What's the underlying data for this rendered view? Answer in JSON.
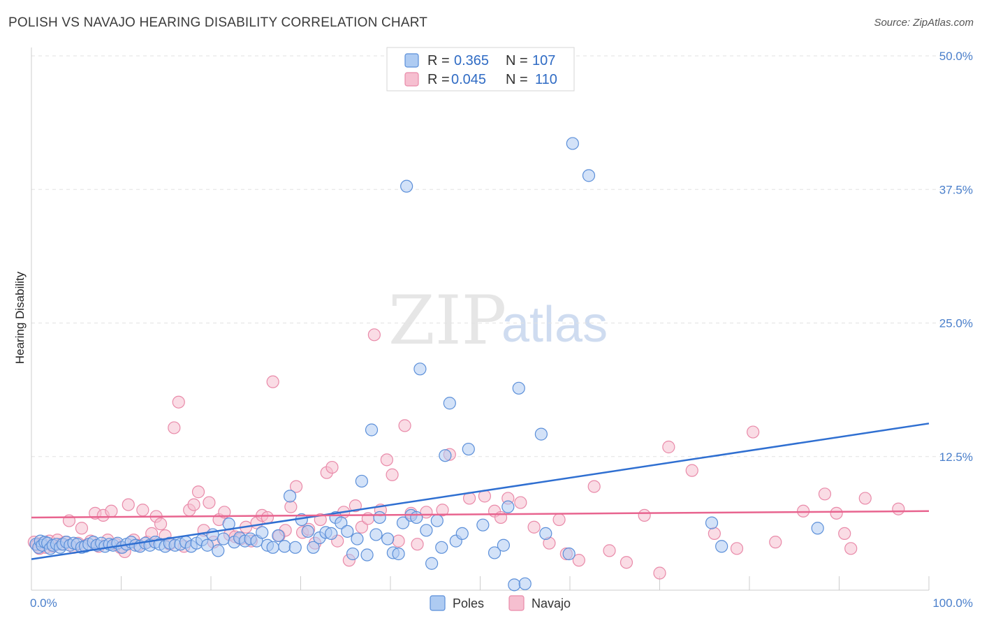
{
  "title": "POLISH VS NAVAJO HEARING DISABILITY CORRELATION CHART",
  "source": "Source: ZipAtlas.com",
  "watermark": {
    "zip": "ZIP",
    "atlas": "atlas"
  },
  "legend": {
    "rows": [
      {
        "r_label": "R = ",
        "r_value": "0.365",
        "n_label": "N = ",
        "n_value": "107"
      },
      {
        "r_label": "R = ",
        "r_value": "0.045",
        "n_label": "N = ",
        "n_value": "110"
      }
    ]
  },
  "colors": {
    "poles_fill": "#aecbf2",
    "poles_stroke": "#5b8fd9",
    "poles_line": "#2f6fd1",
    "navajo_fill": "#f6bfd0",
    "navajo_stroke": "#e98aa9",
    "navajo_line": "#e8648f",
    "grid": "#e2e2e2",
    "axis": "#cccccc"
  },
  "chart_data": {
    "type": "scatter",
    "ylabel": "Hearing Disability",
    "xlim": [
      0,
      100
    ],
    "ylim": [
      0,
      50
    ],
    "y_ticks": [
      {
        "value": 12.5,
        "label": "12.5%"
      },
      {
        "value": 25.0,
        "label": "25.0%"
      },
      {
        "value": 37.5,
        "label": "37.5%"
      },
      {
        "value": 50.0,
        "label": "50.0%"
      }
    ],
    "x_tick_labels": [
      {
        "value": 0,
        "label": "0.0%"
      },
      {
        "value": 100,
        "label": "100.0%"
      }
    ],
    "x_minor_ticks": [
      10,
      20,
      30,
      40,
      50,
      60,
      70,
      80,
      90,
      100
    ],
    "legend_position": "top-center",
    "series": [
      {
        "name": "Poles",
        "trend": {
          "x": [
            0,
            100
          ],
          "y": [
            2.9,
            15.6
          ]
        },
        "points": [
          [
            0.5,
            4.3
          ],
          [
            0.8,
            4.0
          ],
          [
            1.0,
            4.6
          ],
          [
            1.2,
            4.2
          ],
          [
            1.5,
            4.5
          ],
          [
            1.8,
            4.4
          ],
          [
            2.1,
            3.9
          ],
          [
            2.4,
            4.2
          ],
          [
            2.8,
            4.3
          ],
          [
            3.2,
            4.0
          ],
          [
            3.5,
            4.3
          ],
          [
            3.9,
            4.5
          ],
          [
            4.3,
            4.2
          ],
          [
            4.7,
            4.4
          ],
          [
            5.1,
            4.3
          ],
          [
            5.6,
            4.0
          ],
          [
            6.0,
            4.1
          ],
          [
            6.4,
            4.3
          ],
          [
            6.9,
            4.5
          ],
          [
            7.3,
            4.2
          ],
          [
            7.8,
            4.4
          ],
          [
            8.2,
            4.1
          ],
          [
            8.7,
            4.3
          ],
          [
            9.1,
            4.2
          ],
          [
            9.6,
            4.4
          ],
          [
            10.1,
            4.0
          ],
          [
            10.6,
            4.3
          ],
          [
            11.1,
            4.5
          ],
          [
            11.6,
            4.2
          ],
          [
            12.1,
            4.1
          ],
          [
            12.7,
            4.4
          ],
          [
            13.2,
            4.2
          ],
          [
            13.8,
            4.5
          ],
          [
            14.3,
            4.3
          ],
          [
            14.9,
            4.1
          ],
          [
            15.4,
            4.4
          ],
          [
            16.0,
            4.2
          ],
          [
            16.6,
            4.3
          ],
          [
            17.2,
            4.5
          ],
          [
            17.8,
            4.1
          ],
          [
            18.4,
            4.4
          ],
          [
            19.0,
            4.7
          ],
          [
            19.6,
            4.2
          ],
          [
            20.2,
            5.2
          ],
          [
            20.8,
            3.7
          ],
          [
            21.4,
            4.8
          ],
          [
            22.0,
            6.2
          ],
          [
            22.6,
            4.5
          ],
          [
            23.2,
            4.9
          ],
          [
            23.8,
            4.6
          ],
          [
            24.4,
            4.8
          ],
          [
            25.1,
            4.6
          ],
          [
            25.7,
            5.4
          ],
          [
            26.3,
            4.2
          ],
          [
            26.9,
            4.0
          ],
          [
            27.5,
            5.1
          ],
          [
            28.2,
            4.1
          ],
          [
            28.8,
            8.8
          ],
          [
            29.4,
            4.0
          ],
          [
            30.1,
            6.6
          ],
          [
            30.8,
            5.5
          ],
          [
            31.4,
            4.0
          ],
          [
            32.1,
            4.9
          ],
          [
            32.8,
            5.4
          ],
          [
            33.4,
            5.3
          ],
          [
            33.9,
            6.8
          ],
          [
            34.5,
            6.3
          ],
          [
            35.2,
            5.5
          ],
          [
            35.8,
            3.4
          ],
          [
            36.3,
            4.8
          ],
          [
            36.8,
            10.2
          ],
          [
            37.4,
            3.3
          ],
          [
            37.9,
            15.0
          ],
          [
            38.4,
            5.2
          ],
          [
            38.8,
            6.8
          ],
          [
            39.7,
            4.8
          ],
          [
            40.3,
            3.5
          ],
          [
            40.9,
            3.4
          ],
          [
            41.4,
            6.3
          ],
          [
            41.8,
            37.8
          ],
          [
            42.3,
            7.0
          ],
          [
            42.9,
            6.8
          ],
          [
            43.3,
            20.7
          ],
          [
            44.0,
            5.6
          ],
          [
            44.6,
            2.5
          ],
          [
            45.2,
            6.5
          ],
          [
            45.7,
            4.0
          ],
          [
            46.1,
            12.6
          ],
          [
            46.6,
            17.5
          ],
          [
            47.3,
            4.6
          ],
          [
            48.0,
            5.3
          ],
          [
            48.7,
            13.2
          ],
          [
            50.3,
            6.1
          ],
          [
            51.6,
            3.5
          ],
          [
            52.6,
            4.2
          ],
          [
            53.1,
            7.8
          ],
          [
            53.8,
            0.5
          ],
          [
            54.3,
            18.9
          ],
          [
            55.0,
            0.6
          ],
          [
            56.8,
            14.6
          ],
          [
            57.3,
            5.3
          ],
          [
            59.9,
            3.4
          ],
          [
            60.3,
            41.8
          ],
          [
            62.1,
            38.8
          ],
          [
            75.8,
            6.3
          ],
          [
            76.9,
            4.1
          ],
          [
            87.6,
            5.8
          ]
        ]
      },
      {
        "name": "Navajo",
        "trend": {
          "x": [
            0,
            100
          ],
          "y": [
            6.8,
            7.4
          ]
        },
        "points": [
          [
            0.3,
            4.5
          ],
          [
            0.6,
            4.2
          ],
          [
            0.9,
            3.9
          ],
          [
            1.2,
            4.4
          ],
          [
            1.6,
            4.0
          ],
          [
            2.0,
            4.6
          ],
          [
            2.4,
            4.1
          ],
          [
            2.9,
            4.7
          ],
          [
            3.3,
            4.3
          ],
          [
            3.8,
            4.5
          ],
          [
            4.2,
            6.5
          ],
          [
            4.7,
            4.0
          ],
          [
            5.2,
            4.4
          ],
          [
            5.6,
            5.8
          ],
          [
            6.1,
            4.2
          ],
          [
            6.6,
            4.6
          ],
          [
            7.1,
            7.2
          ],
          [
            7.5,
            4.1
          ],
          [
            8.0,
            7.0
          ],
          [
            8.5,
            4.7
          ],
          [
            8.9,
            7.4
          ],
          [
            9.4,
            4.3
          ],
          [
            9.9,
            4.0
          ],
          [
            10.4,
            3.6
          ],
          [
            10.8,
            8.0
          ],
          [
            11.4,
            4.7
          ],
          [
            11.9,
            4.2
          ],
          [
            12.4,
            7.5
          ],
          [
            12.9,
            4.5
          ],
          [
            13.4,
            5.3
          ],
          [
            13.9,
            6.9
          ],
          [
            14.4,
            6.2
          ],
          [
            14.9,
            5.1
          ],
          [
            15.4,
            4.3
          ],
          [
            15.9,
            15.2
          ],
          [
            16.4,
            17.6
          ],
          [
            17.0,
            4.1
          ],
          [
            17.6,
            7.5
          ],
          [
            18.1,
            8.0
          ],
          [
            18.6,
            9.2
          ],
          [
            19.2,
            5.6
          ],
          [
            19.8,
            8.2
          ],
          [
            20.3,
            4.5
          ],
          [
            20.9,
            6.6
          ],
          [
            21.5,
            7.3
          ],
          [
            22.1,
            5.2
          ],
          [
            22.7,
            5.0
          ],
          [
            23.3,
            4.8
          ],
          [
            23.9,
            5.9
          ],
          [
            24.5,
            4.6
          ],
          [
            25.1,
            6.3
          ],
          [
            25.7,
            7.0
          ],
          [
            26.3,
            6.8
          ],
          [
            26.9,
            19.5
          ],
          [
            27.6,
            5.1
          ],
          [
            28.3,
            5.6
          ],
          [
            28.9,
            7.8
          ],
          [
            29.5,
            9.7
          ],
          [
            30.2,
            5.4
          ],
          [
            30.9,
            5.7
          ],
          [
            31.6,
            4.4
          ],
          [
            32.2,
            6.6
          ],
          [
            32.9,
            11.0
          ],
          [
            33.5,
            11.5
          ],
          [
            34.1,
            4.6
          ],
          [
            34.8,
            7.3
          ],
          [
            35.4,
            2.8
          ],
          [
            36.1,
            7.9
          ],
          [
            36.8,
            5.9
          ],
          [
            37.5,
            6.7
          ],
          [
            38.2,
            23.9
          ],
          [
            38.9,
            7.5
          ],
          [
            39.6,
            12.2
          ],
          [
            40.2,
            10.8
          ],
          [
            40.9,
            4.6
          ],
          [
            41.6,
            15.4
          ],
          [
            42.3,
            7.2
          ],
          [
            43.0,
            4.3
          ],
          [
            44.0,
            7.3
          ],
          [
            45.8,
            7.5
          ],
          [
            46.6,
            12.7
          ],
          [
            48.8,
            8.6
          ],
          [
            50.5,
            8.8
          ],
          [
            51.6,
            7.4
          ],
          [
            52.3,
            6.8
          ],
          [
            53.1,
            8.6
          ],
          [
            54.5,
            8.2
          ],
          [
            56.0,
            5.9
          ],
          [
            57.7,
            4.4
          ],
          [
            58.8,
            6.6
          ],
          [
            59.6,
            3.4
          ],
          [
            61.0,
            2.8
          ],
          [
            62.7,
            9.7
          ],
          [
            64.4,
            3.7
          ],
          [
            66.3,
            2.6
          ],
          [
            68.3,
            7.0
          ],
          [
            70.0,
            1.6
          ],
          [
            71.0,
            13.4
          ],
          [
            73.6,
            11.2
          ],
          [
            76.1,
            5.3
          ],
          [
            78.6,
            3.9
          ],
          [
            80.4,
            14.8
          ],
          [
            82.9,
            4.5
          ],
          [
            86.0,
            7.4
          ],
          [
            88.4,
            9.0
          ],
          [
            89.7,
            7.2
          ],
          [
            90.6,
            5.3
          ],
          [
            91.3,
            3.9
          ],
          [
            92.9,
            8.6
          ],
          [
            96.6,
            7.6
          ]
        ]
      }
    ]
  },
  "bottom_legend": {
    "items": [
      {
        "label": "Poles"
      },
      {
        "label": "Navajo"
      }
    ]
  }
}
